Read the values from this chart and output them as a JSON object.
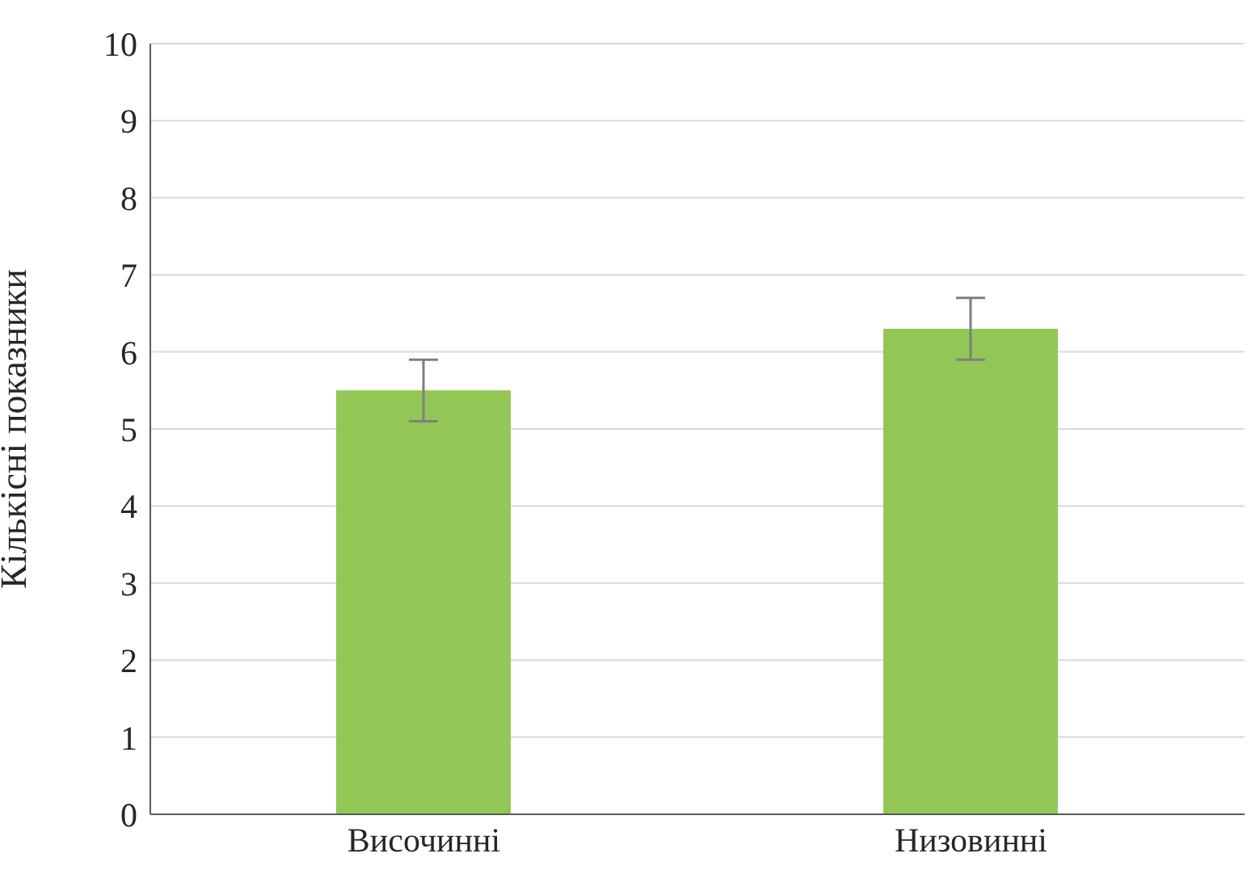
{
  "chart_data": {
    "type": "bar",
    "ylabel": "Кількісні показники",
    "categories": [
      "Височинні",
      "Низовинні"
    ],
    "values": [
      5.5,
      6.3
    ],
    "errors": [
      0.4,
      0.4
    ],
    "color": "#92c756",
    "ylim": [
      0,
      10
    ],
    "yticks": [
      0,
      1,
      2,
      3,
      4,
      5,
      6,
      7,
      8,
      9,
      10
    ],
    "grid": "y"
  }
}
